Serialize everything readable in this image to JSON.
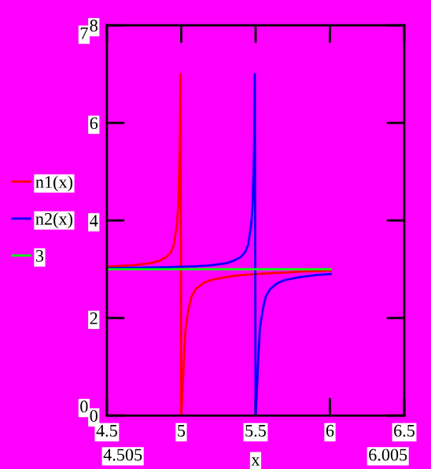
{
  "chart_data": {
    "type": "line",
    "xlabel": "x",
    "legend": "left",
    "grid": false,
    "xlim": [
      4.5,
      6.5
    ],
    "xticks": [
      4.5,
      5,
      5.5,
      6,
      6.5
    ],
    "ylim": [
      0,
      8
    ],
    "yticks": [
      0,
      2,
      4,
      6,
      8
    ],
    "annotations": [
      "7",
      "0",
      "4.505",
      "6.005"
    ],
    "series": [
      {
        "name": "n1(x)",
        "color": "#ff0000",
        "x": [
          4.505,
          4.6,
          4.7,
          4.8,
          4.85,
          4.9,
          4.93,
          4.95,
          4.97,
          4.98,
          4.99,
          4.995,
          5.0,
          5.005,
          5.01,
          5.02,
          5.03,
          5.05,
          5.07,
          5.1,
          5.15,
          5.2,
          5.3,
          5.4,
          5.5,
          5.6,
          5.7,
          5.8,
          5.9,
          6.005
        ],
        "values": [
          3.05,
          3.07,
          3.09,
          3.13,
          3.17,
          3.25,
          3.35,
          3.5,
          3.9,
          4.3,
          5.5,
          7.0,
          0.0,
          0.3,
          0.6,
          1.3,
          1.8,
          2.2,
          2.45,
          2.6,
          2.72,
          2.78,
          2.84,
          2.88,
          2.9,
          2.92,
          2.93,
          2.95,
          2.96,
          2.97
        ]
      },
      {
        "name": "n2(x)",
        "color": "#0000ff",
        "x": [
          4.505,
          4.7,
          4.9,
          5.1,
          5.2,
          5.3,
          5.35,
          5.4,
          5.43,
          5.45,
          5.47,
          5.48,
          5.49,
          5.495,
          5.5,
          5.505,
          5.51,
          5.52,
          5.53,
          5.55,
          5.57,
          5.6,
          5.65,
          5.7,
          5.8,
          5.9,
          6.005
        ],
        "values": [
          3.02,
          3.03,
          3.04,
          3.06,
          3.08,
          3.12,
          3.17,
          3.25,
          3.35,
          3.5,
          3.9,
          4.3,
          5.5,
          7.0,
          0.0,
          0.3,
          0.6,
          1.3,
          1.8,
          2.2,
          2.45,
          2.6,
          2.72,
          2.78,
          2.84,
          2.88,
          2.9
        ]
      },
      {
        "name": "3",
        "color": "#00ff00",
        "x": [
          4.505,
          6.005
        ],
        "values": [
          3,
          3
        ]
      }
    ]
  }
}
